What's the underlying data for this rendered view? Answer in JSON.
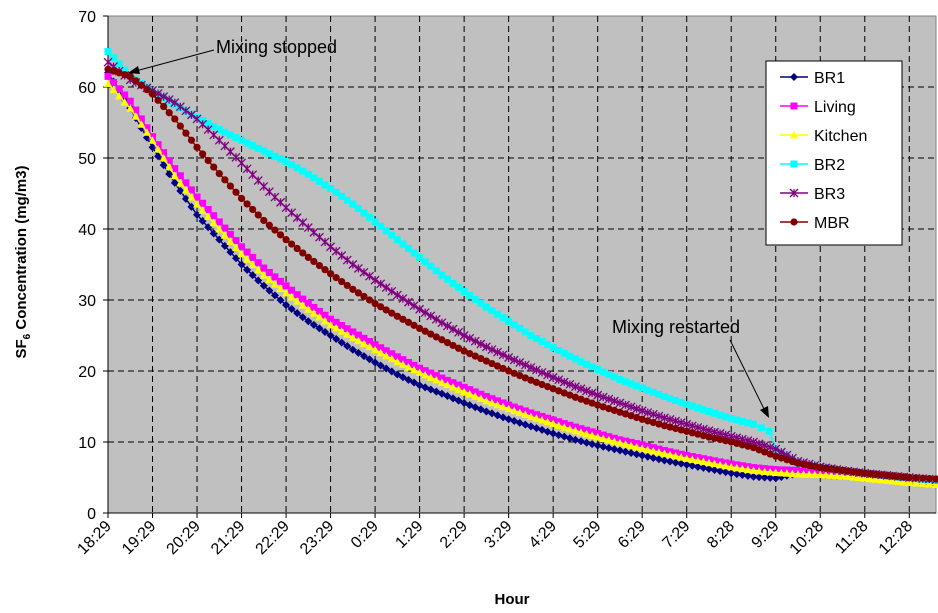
{
  "chart_data": {
    "type": "line",
    "xlabel": "Hour",
    "ylabel_parts": {
      "pre": "SF",
      "sub": "6",
      "post": " Concentration (mg/m3)"
    },
    "ylim": [
      0,
      70
    ],
    "yticks": [
      "0",
      "10",
      "20",
      "30",
      "40",
      "50",
      "60",
      "70"
    ],
    "x_tick_labels": [
      "18:29",
      "19:29",
      "20:29",
      "21:29",
      "22:29",
      "23:29",
      "0:29",
      "1:29",
      "2:29",
      "3:29",
      "4:29",
      "5:29",
      "6:29",
      "7:29",
      "8:28",
      "9:29",
      "10:28",
      "11:28",
      "12:28"
    ],
    "x_hours_span": 18.6,
    "grid": true,
    "legend_position": "right",
    "annotations": [
      {
        "text": "Mixing stopped",
        "hour": 0.1,
        "value": 61.5
      },
      {
        "text": "Mixing restarted",
        "hour": 14.75,
        "value": 13.5
      }
    ],
    "restart_hour": 15,
    "series": [
      {
        "name": "BR1",
        "color": "#000080",
        "marker": "diamond",
        "points": [
          [
            0,
            62
          ],
          [
            0.5,
            57
          ],
          [
            1,
            51.5
          ],
          [
            1.5,
            46.5
          ],
          [
            2,
            42
          ],
          [
            2.5,
            38.5
          ],
          [
            3,
            35
          ],
          [
            3.5,
            32
          ],
          [
            4,
            29.3
          ],
          [
            4.5,
            27
          ],
          [
            5,
            25
          ],
          [
            5.5,
            23
          ],
          [
            6,
            21.2
          ],
          [
            6.5,
            19.5
          ],
          [
            7,
            18
          ],
          [
            7.5,
            16.8
          ],
          [
            8,
            15.5
          ],
          [
            8.5,
            14.3
          ],
          [
            9,
            13.2
          ],
          [
            9.5,
            12.2
          ],
          [
            10,
            11.2
          ],
          [
            10.5,
            10.3
          ],
          [
            11,
            9.5
          ],
          [
            11.5,
            8.8
          ],
          [
            12,
            8.1
          ],
          [
            12.5,
            7.4
          ],
          [
            13,
            6.8
          ],
          [
            13.5,
            6.2
          ],
          [
            14,
            5.6
          ],
          [
            14.5,
            5.1
          ],
          [
            15,
            4.9
          ],
          [
            15.5,
            5.6
          ],
          [
            16,
            5.4
          ],
          [
            16.5,
            5.2
          ],
          [
            17,
            5.0
          ],
          [
            17.5,
            4.7
          ],
          [
            18,
            4.4
          ],
          [
            18.6,
            4.0
          ]
        ]
      },
      {
        "name": "Living",
        "color": "#ff00ff",
        "marker": "square",
        "points": [
          [
            0,
            61.5
          ],
          [
            0.5,
            58
          ],
          [
            1,
            53
          ],
          [
            1.5,
            48.5
          ],
          [
            2,
            44.5
          ],
          [
            2.5,
            41
          ],
          [
            3,
            37.5
          ],
          [
            3.5,
            34.5
          ],
          [
            4,
            32
          ],
          [
            4.5,
            29.5
          ],
          [
            5,
            27.3
          ],
          [
            5.5,
            25.5
          ],
          [
            6,
            23.7
          ],
          [
            6.5,
            22
          ],
          [
            7,
            20.4
          ],
          [
            7.5,
            19
          ],
          [
            8,
            17.7
          ],
          [
            8.5,
            16.4
          ],
          [
            9,
            15.2
          ],
          [
            9.5,
            14.1
          ],
          [
            10,
            13.1
          ],
          [
            10.5,
            12.1
          ],
          [
            11,
            11.2
          ],
          [
            11.5,
            10.3
          ],
          [
            12,
            9.6
          ],
          [
            12.5,
            8.8
          ],
          [
            13,
            8.1
          ],
          [
            13.5,
            7.5
          ],
          [
            14,
            6.9
          ],
          [
            14.5,
            6.4
          ],
          [
            15,
            6.1
          ],
          [
            15.5,
            6.0
          ],
          [
            16,
            5.8
          ],
          [
            16.5,
            5.6
          ],
          [
            17,
            5.3
          ],
          [
            17.5,
            5.0
          ],
          [
            18,
            4.7
          ],
          [
            18.6,
            4.4
          ]
        ]
      },
      {
        "name": "Kitchen",
        "color": "#ffff00",
        "marker": "triangle",
        "points": [
          [
            0,
            60.5
          ],
          [
            0.5,
            57
          ],
          [
            1,
            52.5
          ],
          [
            1.5,
            47.5
          ],
          [
            2,
            43.5
          ],
          [
            2.5,
            40
          ],
          [
            3,
            36.5
          ],
          [
            3.5,
            33.5
          ],
          [
            4,
            31
          ],
          [
            4.5,
            28.7
          ],
          [
            5,
            26.5
          ],
          [
            5.5,
            24.7
          ],
          [
            6,
            23
          ],
          [
            6.5,
            21.3
          ],
          [
            7,
            19.8
          ],
          [
            7.5,
            18.4
          ],
          [
            8,
            17.1
          ],
          [
            8.5,
            15.8
          ],
          [
            9,
            14.7
          ],
          [
            9.5,
            13.6
          ],
          [
            10,
            12.6
          ],
          [
            10.5,
            11.6
          ],
          [
            11,
            10.7
          ],
          [
            11.5,
            9.9
          ],
          [
            12,
            9.1
          ],
          [
            12.5,
            8.4
          ],
          [
            13,
            7.7
          ],
          [
            13.5,
            7.1
          ],
          [
            14,
            6.5
          ],
          [
            14.5,
            6.0
          ],
          [
            15,
            5.7
          ],
          [
            15.5,
            5.5
          ],
          [
            16,
            5.4
          ],
          [
            16.5,
            5.2
          ],
          [
            17,
            4.9
          ],
          [
            17.5,
            4.6
          ],
          [
            18,
            4.3
          ],
          [
            18.6,
            4.0
          ]
        ]
      },
      {
        "name": "BR2",
        "color": "#00ffff",
        "marker": "square",
        "points": [
          [
            0,
            65
          ],
          [
            0.5,
            61.5
          ],
          [
            1,
            59.5
          ],
          [
            1.5,
            57.5
          ],
          [
            2,
            55.7
          ],
          [
            2.5,
            54
          ],
          [
            3,
            52.5
          ],
          [
            3.5,
            51
          ],
          [
            4,
            49.5
          ],
          [
            4.5,
            47.7
          ],
          [
            5,
            45.7
          ],
          [
            5.5,
            43.5
          ],
          [
            6,
            41
          ],
          [
            6.5,
            38.5
          ],
          [
            7,
            36
          ],
          [
            7.5,
            33.5
          ],
          [
            8,
            31.2
          ],
          [
            8.5,
            29
          ],
          [
            9,
            27
          ],
          [
            9.5,
            25
          ],
          [
            10,
            23.3
          ],
          [
            10.5,
            21.7
          ],
          [
            11,
            20.2
          ],
          [
            11.5,
            18.8
          ],
          [
            12,
            17.6
          ],
          [
            12.5,
            16.4
          ],
          [
            13,
            15.3
          ],
          [
            13.5,
            14.3
          ],
          [
            14,
            13.3
          ],
          [
            14.5,
            12.5
          ],
          [
            14.85,
            11.5
          ],
          [
            15,
            9
          ],
          [
            15.5,
            7
          ],
          [
            16,
            6.5
          ],
          [
            16.5,
            6.0
          ],
          [
            17,
            5.6
          ],
          [
            17.5,
            5.2
          ],
          [
            18,
            4.9
          ],
          [
            18.6,
            4.6
          ]
        ]
      },
      {
        "name": "BR3",
        "color": "#800080",
        "marker": "x",
        "points": [
          [
            0,
            63.5
          ],
          [
            0.5,
            61
          ],
          [
            1,
            59.5
          ],
          [
            1.5,
            57.8
          ],
          [
            2,
            55.5
          ],
          [
            2.5,
            52.5
          ],
          [
            3,
            49.3
          ],
          [
            3.5,
            46
          ],
          [
            4,
            43
          ],
          [
            4.5,
            40.2
          ],
          [
            5,
            37.5
          ],
          [
            5.5,
            35
          ],
          [
            6,
            32.8
          ],
          [
            6.5,
            30.7
          ],
          [
            7,
            28.7
          ],
          [
            7.5,
            26.8
          ],
          [
            8,
            25
          ],
          [
            8.5,
            23.4
          ],
          [
            9,
            21.9
          ],
          [
            9.5,
            20.5
          ],
          [
            10,
            19.1
          ],
          [
            10.5,
            17.8
          ],
          [
            11,
            16.6
          ],
          [
            11.5,
            15.5
          ],
          [
            12,
            14.4
          ],
          [
            12.5,
            13.4
          ],
          [
            13,
            12.5
          ],
          [
            13.5,
            11.6
          ],
          [
            14,
            10.8
          ],
          [
            14.5,
            10.0
          ],
          [
            15,
            9.0
          ],
          [
            15.5,
            7.3
          ],
          [
            16,
            6.5
          ],
          [
            16.5,
            6.0
          ],
          [
            17,
            5.6
          ],
          [
            17.5,
            5.3
          ],
          [
            18,
            5.0
          ],
          [
            18.6,
            4.7
          ]
        ]
      },
      {
        "name": "MBR",
        "color": "#800000",
        "marker": "circle",
        "points": [
          [
            0,
            62.5
          ],
          [
            0.5,
            61.5
          ],
          [
            1,
            59
          ],
          [
            1.5,
            55.5
          ],
          [
            2,
            51.5
          ],
          [
            2.5,
            47.8
          ],
          [
            3,
            44.3
          ],
          [
            3.5,
            41.2
          ],
          [
            4,
            38.5
          ],
          [
            4.5,
            36
          ],
          [
            5,
            33.7
          ],
          [
            5.5,
            31.5
          ],
          [
            6,
            29.5
          ],
          [
            6.5,
            27.7
          ],
          [
            7,
            26
          ],
          [
            7.5,
            24.4
          ],
          [
            8,
            22.8
          ],
          [
            8.5,
            21.4
          ],
          [
            9,
            20
          ],
          [
            9.5,
            18.7
          ],
          [
            10,
            17.5
          ],
          [
            10.5,
            16.3
          ],
          [
            11,
            15.2
          ],
          [
            11.5,
            14.2
          ],
          [
            12,
            13.2
          ],
          [
            12.5,
            12.3
          ],
          [
            13,
            11.5
          ],
          [
            13.5,
            10.7
          ],
          [
            14,
            10.0
          ],
          [
            14.5,
            9.2
          ],
          [
            15,
            8.0
          ],
          [
            15.5,
            7.0
          ],
          [
            16,
            6.4
          ],
          [
            16.5,
            6.0
          ],
          [
            17,
            5.6
          ],
          [
            17.5,
            5.3
          ],
          [
            18,
            5.0
          ],
          [
            18.6,
            4.8
          ]
        ]
      }
    ]
  }
}
